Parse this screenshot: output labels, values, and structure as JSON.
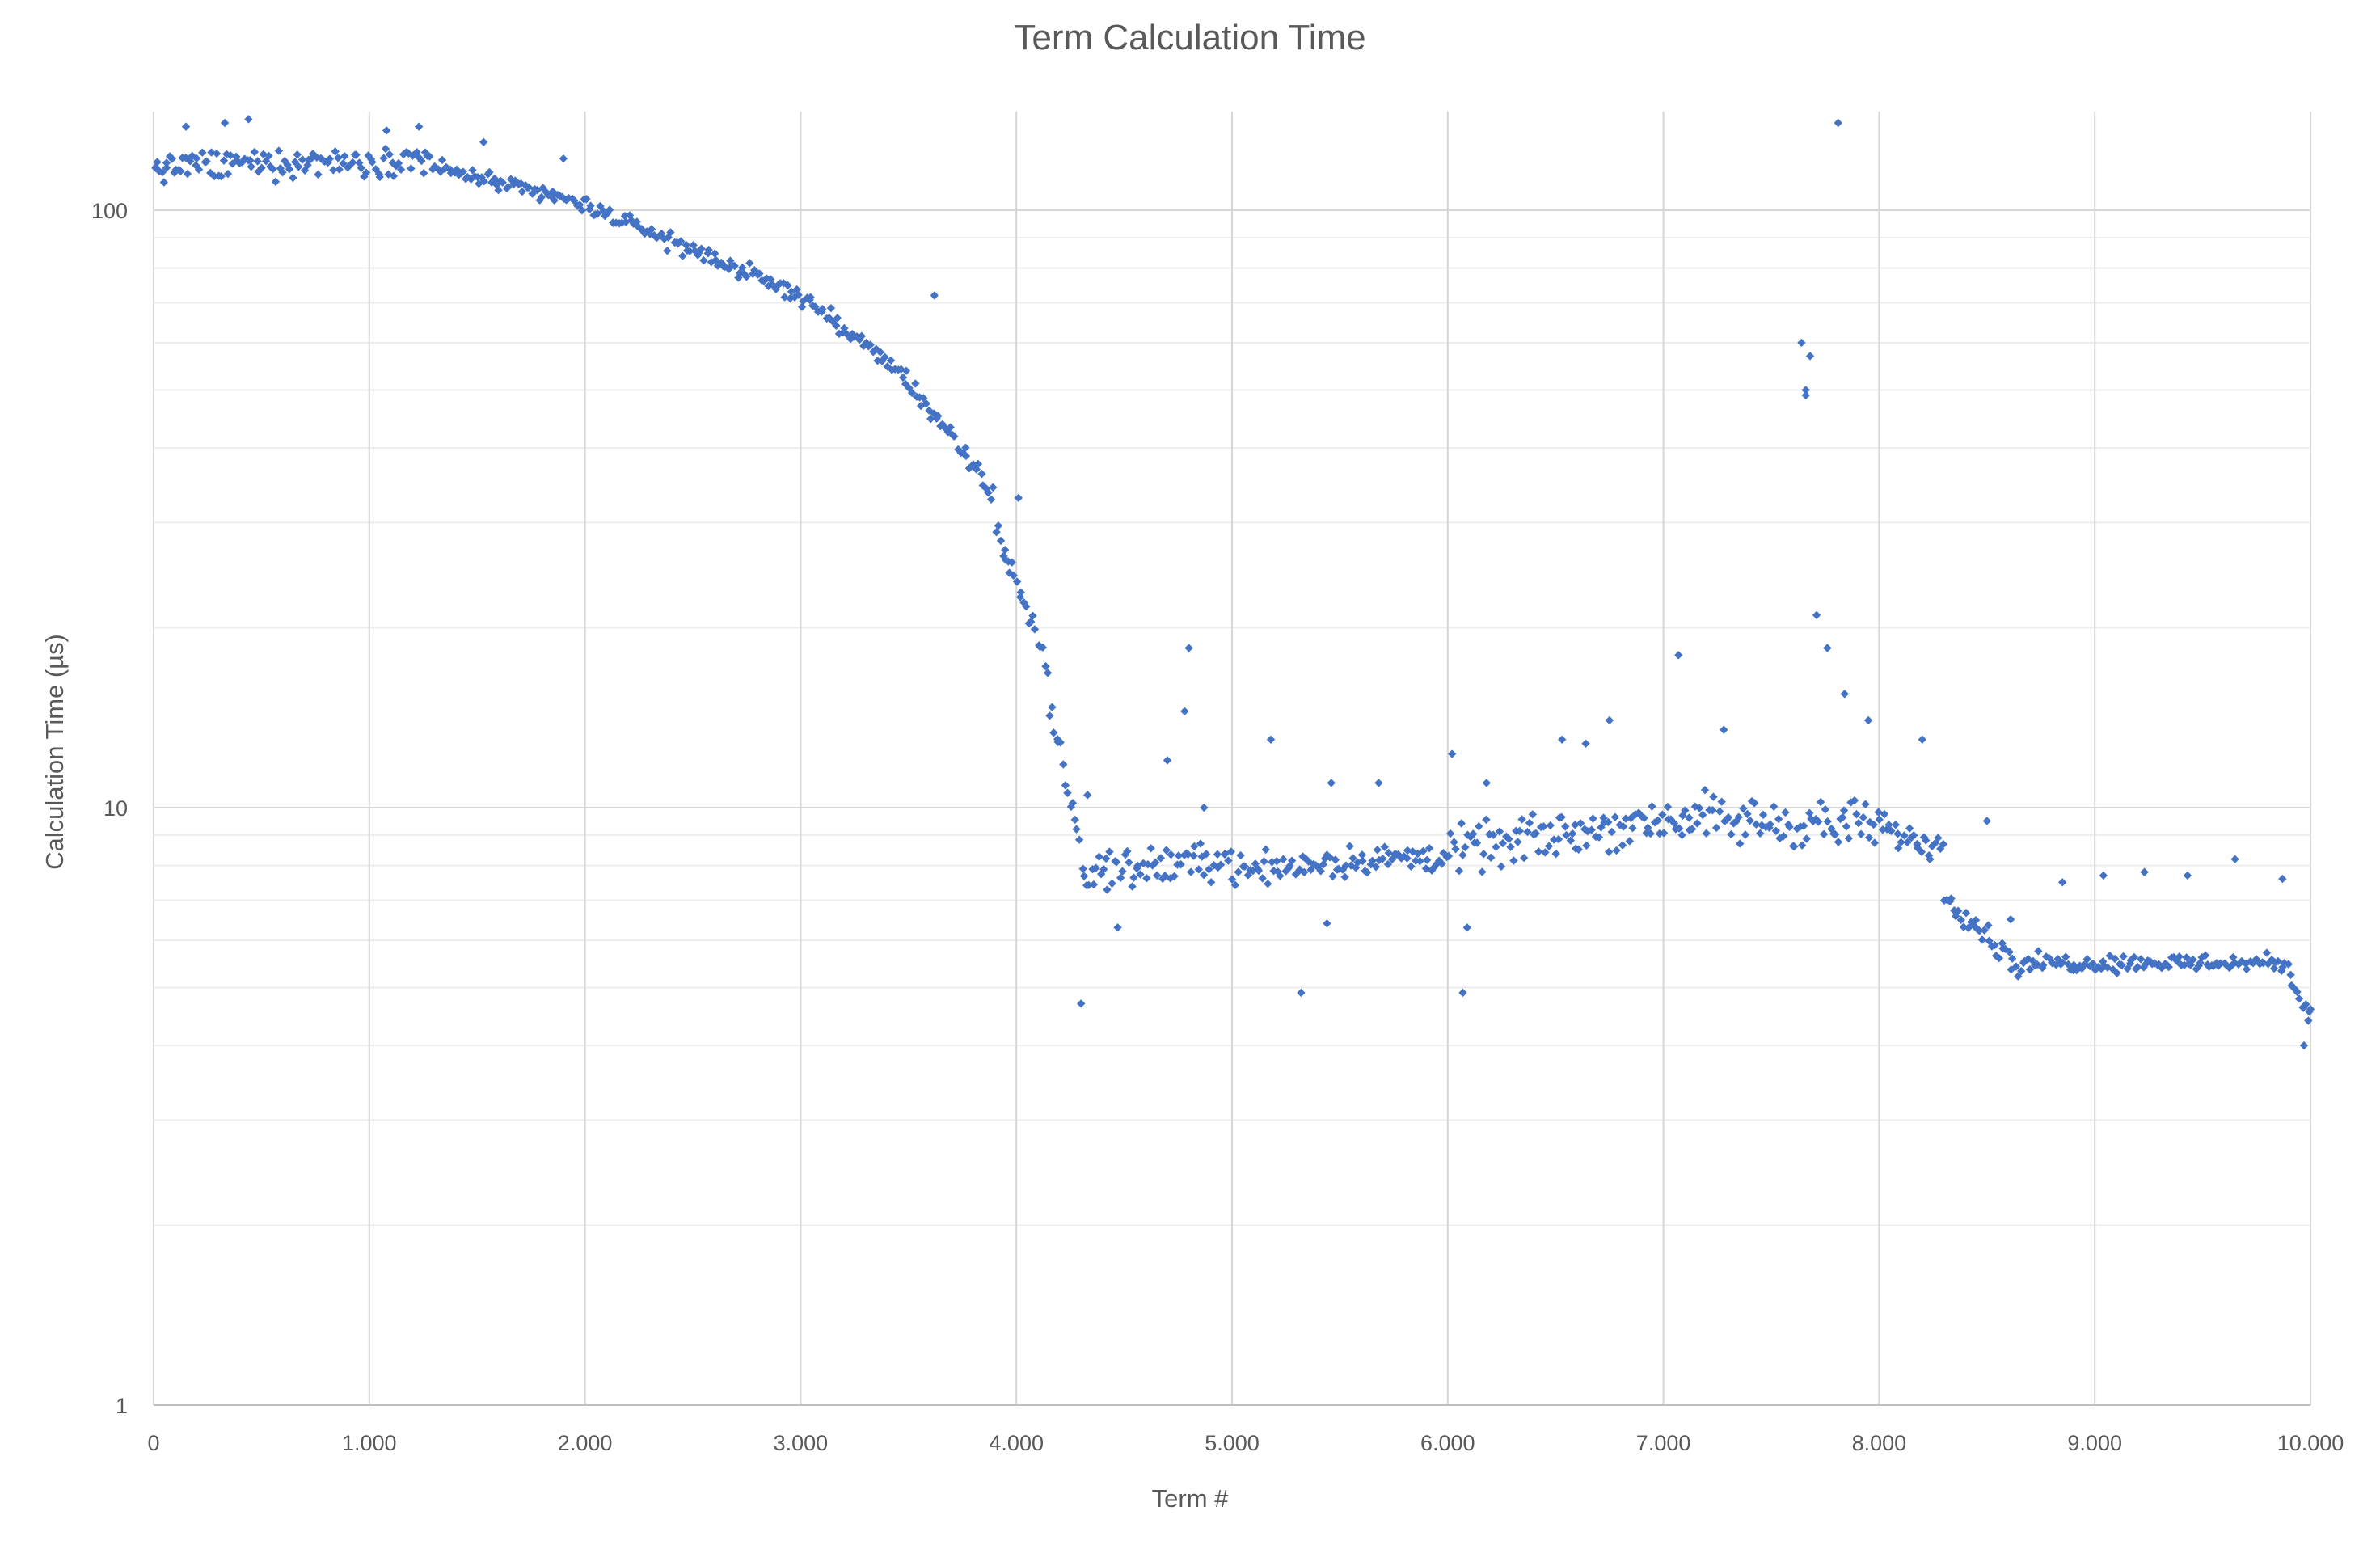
{
  "chart_data": {
    "type": "scatter",
    "title": "Term Calculation Time",
    "xlabel": "Term #",
    "ylabel": "Calculation Time (µs)",
    "x_range": [
      0,
      10000
    ],
    "y_range": [
      1,
      150
    ],
    "y_scale": "log",
    "grid": true,
    "legend": "none",
    "marker_color": "#4472C4",
    "x_tick_labels": [
      "0",
      "1.000",
      "2.000",
      "3.000",
      "4.000",
      "5.000",
      "6.000",
      "7.000",
      "8.000",
      "9.000",
      "10.000"
    ],
    "x_tick_values": [
      0,
      1000,
      2000,
      3000,
      4000,
      5000,
      6000,
      7000,
      8000,
      9000,
      10000
    ],
    "y_tick_labels": [
      "1",
      "10",
      "100"
    ],
    "y_tick_values": [
      1,
      10,
      100
    ],
    "segments": [
      {
        "x_start": 0,
        "x_end": 1300,
        "y_start": 118,
        "y_end": 122,
        "spread": 0.08
      },
      {
        "x_start": 1300,
        "x_end": 2000,
        "y_start": 118,
        "y_end": 102,
        "spread": 0.05
      },
      {
        "x_start": 2000,
        "x_end": 3000,
        "y_start": 102,
        "y_end": 72,
        "spread": 0.05
      },
      {
        "x_start": 3000,
        "x_end": 3500,
        "y_start": 72,
        "y_end": 52,
        "spread": 0.05
      },
      {
        "x_start": 3500,
        "x_end": 3900,
        "y_start": 52,
        "y_end": 33,
        "spread": 0.06
      },
      {
        "x_start": 3900,
        "x_end": 4150,
        "y_start": 30,
        "y_end": 17,
        "spread": 0.07
      },
      {
        "x_start": 4150,
        "x_end": 4300,
        "y_start": 15,
        "y_end": 8.5,
        "spread": 0.07
      },
      {
        "x_start": 4300,
        "x_end": 5000,
        "y_start": 7.8,
        "y_end": 8.2,
        "spread": 0.11
      },
      {
        "x_start": 5000,
        "x_end": 6000,
        "y_start": 7.9,
        "y_end": 8.3,
        "spread": 0.09
      },
      {
        "x_start": 6000,
        "x_end": 7000,
        "y_start": 8.4,
        "y_end": 9.6,
        "spread": 0.13
      },
      {
        "x_start": 7000,
        "x_end": 8000,
        "y_start": 9.6,
        "y_end": 9.3,
        "spread": 0.14
      },
      {
        "x_start": 8000,
        "x_end": 8300,
        "y_start": 9.2,
        "y_end": 8.6,
        "spread": 0.09
      },
      {
        "x_start": 8300,
        "x_end": 8650,
        "y_start": 7.2,
        "y_end": 5.4,
        "spread": 0.07
      },
      {
        "x_start": 8650,
        "x_end": 9900,
        "y_start": 5.5,
        "y_end": 5.5,
        "spread": 0.05
      },
      {
        "x_start": 9900,
        "x_end": 10000,
        "y_start": 5.2,
        "y_end": 4.5,
        "spread": 0.04
      }
    ],
    "points": [
      [
        10,
        118
      ],
      [
        60,
        120
      ],
      [
        150,
        138
      ],
      [
        330,
        140
      ],
      [
        440,
        142
      ],
      [
        1080,
        136
      ],
      [
        1230,
        138
      ],
      [
        1530,
        130
      ],
      [
        1900,
        122
      ],
      [
        3620,
        72
      ],
      [
        3950,
        26
      ],
      [
        4010,
        33
      ],
      [
        4300,
        4.7
      ],
      [
        4330,
        10.5
      ],
      [
        4470,
        6.3
      ],
      [
        4700,
        12
      ],
      [
        4780,
        14.5
      ],
      [
        4800,
        18.5
      ],
      [
        4870,
        10
      ],
      [
        5180,
        13
      ],
      [
        5320,
        4.9
      ],
      [
        5440,
        6.4
      ],
      [
        5460,
        11
      ],
      [
        5680,
        11
      ],
      [
        6020,
        12.3
      ],
      [
        6070,
        4.9
      ],
      [
        6090,
        6.3
      ],
      [
        6180,
        11
      ],
      [
        6530,
        13
      ],
      [
        6640,
        12.8
      ],
      [
        6750,
        14
      ],
      [
        7070,
        18
      ],
      [
        7280,
        13.5
      ],
      [
        7640,
        60
      ],
      [
        7660,
        50
      ],
      [
        7680,
        57
      ],
      [
        7660,
        49
      ],
      [
        7710,
        21
      ],
      [
        7760,
        18.5
      ],
      [
        7810,
        140
      ],
      [
        7840,
        15.5
      ],
      [
        7950,
        14
      ],
      [
        8200,
        13
      ],
      [
        8500,
        9.5
      ],
      [
        8610,
        6.5
      ],
      [
        8850,
        7.5
      ],
      [
        9040,
        7.7
      ],
      [
        9230,
        7.8
      ],
      [
        9430,
        7.7
      ],
      [
        9650,
        8.2
      ],
      [
        9870,
        7.6
      ],
      [
        9970,
        4
      ],
      [
        9990,
        4.4
      ],
      [
        10000,
        4.6
      ]
    ]
  }
}
